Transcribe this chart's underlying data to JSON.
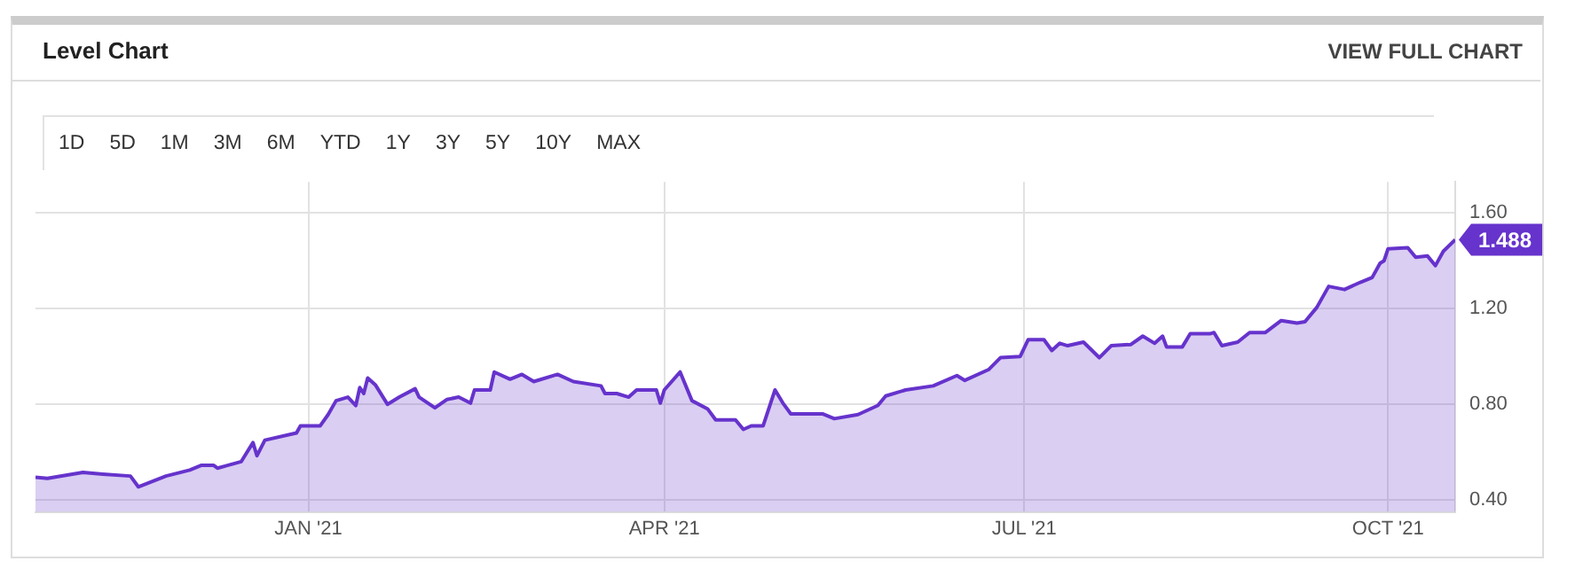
{
  "chart_data": {
    "type": "area",
    "title": "Level Chart",
    "annotations": [
      "VIEW FULL CHART",
      "1D",
      "5D",
      "1M",
      "3M",
      "6M",
      "YTD",
      "1Y",
      "3Y",
      "5Y",
      "10Y",
      "MAX",
      {
        "text": "1.488",
        "x": "2021-10-18",
        "y": 1.488
      }
    ],
    "x": [
      "2020-10-24",
      "2020-10-27",
      "2020-11-05",
      "2020-11-10",
      "2020-11-17",
      "2020-11-19",
      "2020-11-26",
      "2020-12-02",
      "2020-12-05",
      "2020-12-08",
      "2020-12-09",
      "2020-12-15",
      "2020-12-18",
      "2020-12-19",
      "2020-12-21",
      "2020-12-29",
      "2020-12-30",
      "2021-01-04",
      "2021-01-06",
      "2021-01-08",
      "2021-01-11",
      "2021-01-13",
      "2021-01-14",
      "2021-01-15",
      "2021-01-16",
      "2021-01-18",
      "2021-01-21",
      "2021-01-24",
      "2021-01-28",
      "2021-01-29",
      "2021-02-02",
      "2021-02-05",
      "2021-02-08",
      "2021-02-11",
      "2021-02-12",
      "2021-02-16",
      "2021-02-17",
      "2021-02-21",
      "2021-02-24",
      "2021-02-27",
      "2021-03-05",
      "2021-03-09",
      "2021-03-16",
      "2021-03-17",
      "2021-03-20",
      "2021-03-23",
      "2021-03-25",
      "2021-03-30",
      "2021-03-31",
      "2021-04-01",
      "2021-04-05",
      "2021-04-08",
      "2021-04-12",
      "2021-04-14",
      "2021-04-19",
      "2021-04-21",
      "2021-04-23",
      "2021-04-26",
      "2021-04-29",
      "2021-05-01",
      "2021-05-03",
      "2021-05-11",
      "2021-05-14",
      "2021-05-20",
      "2021-05-25",
      "2021-05-27",
      "2021-06-01",
      "2021-06-08",
      "2021-06-14",
      "2021-06-16",
      "2021-06-22",
      "2021-06-25",
      "2021-06-30",
      "2021-07-02",
      "2021-07-06",
      "2021-07-08",
      "2021-07-10",
      "2021-07-12",
      "2021-07-16",
      "2021-07-20",
      "2021-07-23",
      "2021-07-28",
      "2021-07-31",
      "2021-08-03",
      "2021-08-05",
      "2021-08-06",
      "2021-08-10",
      "2021-08-12",
      "2021-08-17",
      "2021-08-18",
      "2021-08-20",
      "2021-08-24",
      "2021-08-27",
      "2021-08-31",
      "2021-09-04",
      "2021-09-08",
      "2021-09-10",
      "2021-09-13",
      "2021-09-16",
      "2021-09-20",
      "2021-09-24",
      "2021-09-27",
      "2021-09-29",
      "2021-09-30",
      "2021-10-01",
      "2021-10-06",
      "2021-10-08",
      "2021-10-11",
      "2021-10-13",
      "2021-10-15",
      "2021-10-18"
    ],
    "series": [
      {
        "color": "#6633cc",
        "values": [
          0.495,
          0.49,
          0.515,
          0.508,
          0.5,
          0.455,
          0.5,
          0.525,
          0.545,
          0.545,
          0.533,
          0.56,
          0.64,
          0.585,
          0.65,
          0.68,
          0.71,
          0.71,
          0.757,
          0.815,
          0.83,
          0.795,
          0.87,
          0.845,
          0.91,
          0.88,
          0.8,
          0.83,
          0.865,
          0.83,
          0.785,
          0.82,
          0.83,
          0.805,
          0.86,
          0.86,
          0.935,
          0.905,
          0.925,
          0.895,
          0.925,
          0.895,
          0.877,
          0.845,
          0.845,
          0.83,
          0.86,
          0.86,
          0.805,
          0.86,
          0.935,
          0.815,
          0.78,
          0.735,
          0.735,
          0.695,
          0.71,
          0.71,
          0.86,
          0.805,
          0.76,
          0.76,
          0.74,
          0.757,
          0.795,
          0.835,
          0.86,
          0.877,
          0.92,
          0.9,
          0.945,
          0.995,
          1.0,
          1.07,
          1.07,
          1.025,
          1.055,
          1.045,
          1.06,
          0.995,
          1.045,
          1.05,
          1.085,
          1.055,
          1.085,
          1.04,
          1.04,
          1.095,
          1.095,
          1.1,
          1.045,
          1.06,
          1.1,
          1.1,
          1.15,
          1.14,
          1.145,
          1.205,
          1.293,
          1.28,
          1.31,
          1.33,
          1.39,
          1.4,
          1.45,
          1.455,
          1.415,
          1.42,
          1.38,
          1.44,
          1.488
        ]
      }
    ],
    "xlim": [
      "2020-10-24",
      "2021-10-18"
    ],
    "xticks": [
      {
        "value": "2021-01-01",
        "label": "JAN '21"
      },
      {
        "value": "2021-04-01",
        "label": "APR '21"
      },
      {
        "value": "2021-07-01",
        "label": "JUL '21"
      },
      {
        "value": "2021-10-01",
        "label": "OCT '21"
      }
    ],
    "ylim": [
      0.35,
      1.73
    ],
    "yticks": [
      {
        "value": 0.4,
        "label": "0.40"
      },
      {
        "value": 0.8,
        "label": "0.80"
      },
      {
        "value": 1.2,
        "label": "1.20"
      },
      {
        "value": 1.6,
        "label": "1.60"
      }
    ],
    "grid": true,
    "legend": false,
    "marker": "none",
    "line_style": "solid"
  }
}
